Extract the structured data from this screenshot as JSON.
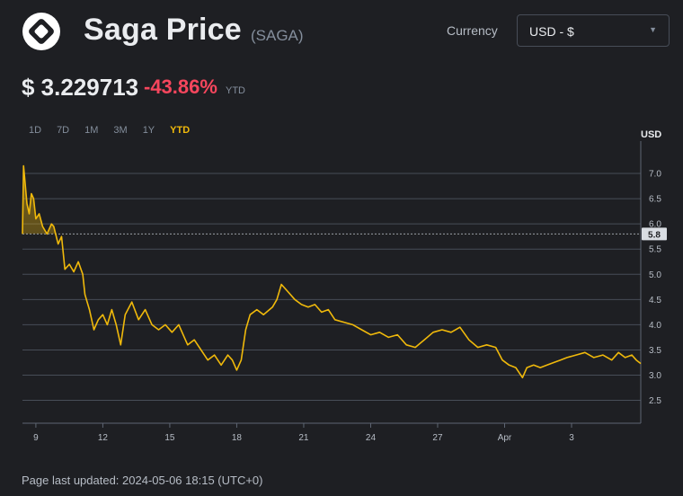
{
  "header": {
    "logo_icon": "saga-logo-icon",
    "title": "Saga Price",
    "symbol": "(SAGA)",
    "currency_label": "Currency",
    "currency_value": "USD - $",
    "price": "$ 3.229713",
    "change": "-43.86%",
    "change_period": "YTD"
  },
  "tabs": [
    {
      "label": "1D",
      "active": false
    },
    {
      "label": "7D",
      "active": false
    },
    {
      "label": "1M",
      "active": false
    },
    {
      "label": "3M",
      "active": false
    },
    {
      "label": "1Y",
      "active": false
    },
    {
      "label": "YTD",
      "active": true
    }
  ],
  "footer": "Page last updated: 2024-05-06 18:15 (UTC+0)",
  "colors": {
    "background": "#1e1f23",
    "line": "#f0b90b",
    "negative": "#f6465d",
    "grid": "#474d57"
  },
  "chart_data": {
    "type": "line",
    "y_axis_unit": "USD",
    "ylim": [
      2.1,
      7.5
    ],
    "yticks": [
      2.5,
      3.0,
      3.5,
      4.0,
      4.5,
      5.0,
      5.5,
      6.0,
      6.5,
      7.0
    ],
    "reference_line": {
      "value": 5.8,
      "label": "5.8"
    },
    "grid": true,
    "xticks": [
      {
        "label": "9",
        "x": 0.2
      },
      {
        "label": "12",
        "x": 3.2
      },
      {
        "label": "15",
        "x": 6.2
      },
      {
        "label": "18",
        "x": 9.2
      },
      {
        "label": "21",
        "x": 12.2
      },
      {
        "label": "24",
        "x": 15.2
      },
      {
        "label": "27",
        "x": 18.2
      },
      {
        "label": "Apr",
        "x": 21.2
      },
      {
        "label": "3",
        "x": 24.2
      }
    ],
    "xlim": [
      -0.4,
      27.3
    ],
    "series": [
      {
        "values": [
          [
            -0.4,
            5.8
          ],
          [
            -0.35,
            7.15
          ],
          [
            -0.3,
            6.9
          ],
          [
            -0.2,
            6.4
          ],
          [
            -0.1,
            6.2
          ],
          [
            0.0,
            6.6
          ],
          [
            0.1,
            6.5
          ],
          [
            0.2,
            6.1
          ],
          [
            0.35,
            6.2
          ],
          [
            0.5,
            5.95
          ],
          [
            0.7,
            5.8
          ],
          [
            0.9,
            6.0
          ],
          [
            1.0,
            5.95
          ],
          [
            1.2,
            5.6
          ],
          [
            1.35,
            5.75
          ],
          [
            1.5,
            5.1
          ],
          [
            1.7,
            5.2
          ],
          [
            1.9,
            5.05
          ],
          [
            2.1,
            5.25
          ],
          [
            2.3,
            5.0
          ],
          [
            2.4,
            4.6
          ],
          [
            2.6,
            4.3
          ],
          [
            2.8,
            3.9
          ],
          [
            3.0,
            4.1
          ],
          [
            3.2,
            4.2
          ],
          [
            3.4,
            4.0
          ],
          [
            3.6,
            4.3
          ],
          [
            3.8,
            4.0
          ],
          [
            4.0,
            3.6
          ],
          [
            4.2,
            4.2
          ],
          [
            4.5,
            4.45
          ],
          [
            4.8,
            4.1
          ],
          [
            5.1,
            4.3
          ],
          [
            5.4,
            4.0
          ],
          [
            5.7,
            3.9
          ],
          [
            6.0,
            4.0
          ],
          [
            6.3,
            3.85
          ],
          [
            6.6,
            4.0
          ],
          [
            7.0,
            3.6
          ],
          [
            7.3,
            3.7
          ],
          [
            7.6,
            3.5
          ],
          [
            7.9,
            3.3
          ],
          [
            8.2,
            3.4
          ],
          [
            8.5,
            3.2
          ],
          [
            8.8,
            3.4
          ],
          [
            9.0,
            3.3
          ],
          [
            9.2,
            3.1
          ],
          [
            9.4,
            3.3
          ],
          [
            9.6,
            3.9
          ],
          [
            9.8,
            4.2
          ],
          [
            10.1,
            4.3
          ],
          [
            10.4,
            4.2
          ],
          [
            10.8,
            4.35
          ],
          [
            11.0,
            4.5
          ],
          [
            11.2,
            4.8
          ],
          [
            11.5,
            4.65
          ],
          [
            11.8,
            4.5
          ],
          [
            12.1,
            4.4
          ],
          [
            12.4,
            4.35
          ],
          [
            12.7,
            4.4
          ],
          [
            13.0,
            4.25
          ],
          [
            13.3,
            4.3
          ],
          [
            13.6,
            4.1
          ],
          [
            14.0,
            4.05
          ],
          [
            14.4,
            4.0
          ],
          [
            14.8,
            3.9
          ],
          [
            15.2,
            3.8
          ],
          [
            15.6,
            3.85
          ],
          [
            16.0,
            3.75
          ],
          [
            16.4,
            3.8
          ],
          [
            16.8,
            3.6
          ],
          [
            17.2,
            3.55
          ],
          [
            17.6,
            3.7
          ],
          [
            18.0,
            3.85
          ],
          [
            18.4,
            3.9
          ],
          [
            18.8,
            3.85
          ],
          [
            19.2,
            3.95
          ],
          [
            19.6,
            3.7
          ],
          [
            20.0,
            3.55
          ],
          [
            20.4,
            3.6
          ],
          [
            20.8,
            3.55
          ],
          [
            21.1,
            3.3
          ],
          [
            21.4,
            3.2
          ],
          [
            21.7,
            3.15
          ],
          [
            22.0,
            2.95
          ],
          [
            22.2,
            3.15
          ],
          [
            22.5,
            3.2
          ],
          [
            22.8,
            3.15
          ],
          [
            23.1,
            3.2
          ],
          [
            23.4,
            3.25
          ],
          [
            23.7,
            3.3
          ],
          [
            24.0,
            3.35
          ],
          [
            24.4,
            3.4
          ],
          [
            24.8,
            3.45
          ],
          [
            25.2,
            3.35
          ],
          [
            25.6,
            3.4
          ],
          [
            26.0,
            3.3
          ],
          [
            26.3,
            3.45
          ],
          [
            26.6,
            3.35
          ],
          [
            26.9,
            3.4
          ],
          [
            27.1,
            3.3
          ],
          [
            27.3,
            3.23
          ]
        ]
      }
    ]
  }
}
